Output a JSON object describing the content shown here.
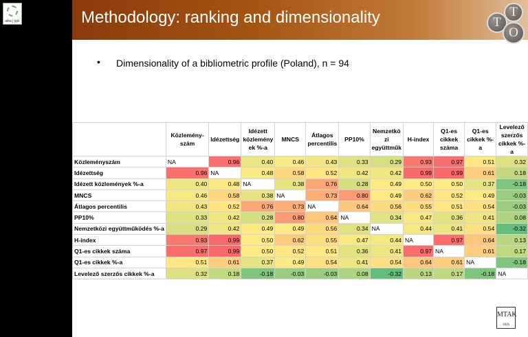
{
  "header": {
    "title": "Methodology: ranking and dimensionality",
    "badge_letters": [
      "T",
      "T",
      "O"
    ]
  },
  "left_logo": {
    "text": "aiba j ppk"
  },
  "bullet": {
    "symbol": "•",
    "text": "Dimensionality of a bibliometric profile (Poland), n = 94"
  },
  "table": {
    "columns": [
      "Közlemény-szám",
      "Idézettség",
      "Idézett közlemény ek %-a",
      "MNCS",
      "Átlagos percentilis",
      "PP10%",
      "Nemzetkö zi együttműk",
      "H-index",
      "Q1-es cikkek száma",
      "Q1-es cikkek %-a",
      "Levelező szerzős cikkek %-a"
    ],
    "rows": [
      {
        "label": "Közleményszám",
        "cells": [
          "NA",
          "0.96",
          "0.40",
          "0.46",
          "0.43",
          "0.33",
          "0.29",
          "0.93",
          "0.97",
          "0.51",
          "0.32"
        ]
      },
      {
        "label": "Idézettség",
        "cells": [
          "0.96",
          "NA",
          "0.48",
          "0.58",
          "0.52",
          "0.42",
          "0.42",
          "0.99",
          "0.99",
          "0.61",
          "0.18"
        ]
      },
      {
        "label": "Idézett közlemények %-a",
        "cells": [
          "0.40",
          "0.48",
          "NA",
          "0.38",
          "0.76",
          "0.28",
          "0.49",
          "0.50",
          "0.50",
          "0.37",
          "-0.18"
        ]
      },
      {
        "label": "MNCS",
        "cells": [
          "0.46",
          "0.58",
          "0.38",
          "NA",
          "0.73",
          "0.80",
          "0.49",
          "0.62",
          "0.52",
          "0.49",
          "-0.03"
        ]
      },
      {
        "label": "Átlagos percentilis",
        "cells": [
          "0.43",
          "0.52",
          "0.76",
          "0.73",
          "NA",
          "0.64",
          "0.56",
          "0.55",
          "0.51",
          "0.54",
          "-0.03"
        ]
      },
      {
        "label": "PP10%",
        "cells": [
          "0.33",
          "0.42",
          "0.28",
          "0.80",
          "0.64",
          "NA",
          "0.34",
          "0.47",
          "0.36",
          "0.41",
          "0.08"
        ]
      },
      {
        "label": "Nemzetközi együttműködés %-a",
        "cells": [
          "0.29",
          "0.42",
          "0.49",
          "0.49",
          "0.56",
          "0.34",
          "NA",
          "0.44",
          "0.41",
          "0.54",
          "-0.32"
        ]
      },
      {
        "label": "H-index",
        "cells": [
          "0.93",
          "0.99",
          "0.50",
          "0.62",
          "0.55",
          "0.47",
          "0.44",
          "NA",
          "0.97",
          "0.64",
          "0.13"
        ]
      },
      {
        "label": "Q1-es cikkek száma",
        "cells": [
          "0.97",
          "0.99",
          "0.50",
          "0.52",
          "0.51",
          "0.36",
          "0.41",
          "0.97",
          "NA",
          "0.61",
          "0.17"
        ]
      },
      {
        "label": "Q1-es cikkek %-a",
        "cells": [
          "0.51",
          "0.61",
          "0.37",
          "0.49",
          "0.54",
          "0.41",
          "0.54",
          "0.64",
          "0.61",
          "NA",
          "-0.18"
        ]
      },
      {
        "label": "Levelező szerzős cikkek %-a",
        "cells": [
          "0.32",
          "0.18",
          "-0.18",
          "-0.03",
          "-0.03",
          "0.08",
          "-0.32",
          "0.13",
          "0.17",
          "-0.18",
          "NA"
        ]
      }
    ],
    "color_scale": {
      "low": "#63be7b",
      "mid": "#ffeb84",
      "high": "#f8696b"
    }
  },
  "footer_logo": {
    "text": "MTAK",
    "year": "1826"
  }
}
